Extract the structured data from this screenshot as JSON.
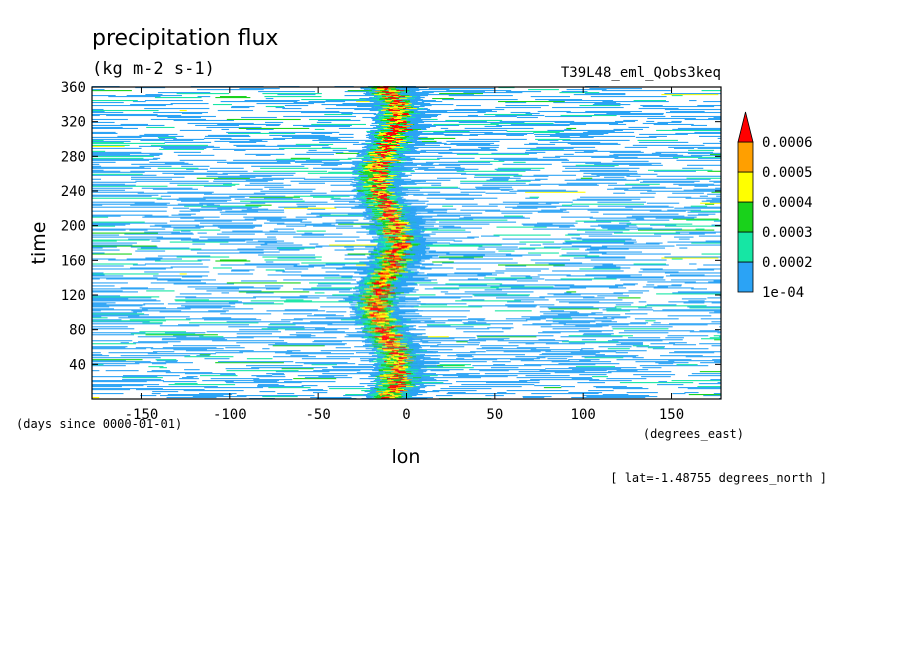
{
  "chart_data": {
    "type": "heatmap",
    "title": "precipitation flux",
    "units": "(kg m-2 s-1)",
    "experiment": "T39L48_eml_Qobs3keq",
    "xlabel": "lon",
    "ylabel": "time",
    "x_units": "(degrees_east)",
    "y_units": "(days since 0000-01-01)",
    "slice_note": "[ lat=-1.48755 degrees_north ]",
    "xlim": [
      -178,
      178
    ],
    "ylim": [
      0,
      360
    ],
    "xticks": [
      -150,
      -100,
      -50,
      0,
      50,
      100,
      150
    ],
    "xtick_labels": [
      "-150",
      "-100",
      "-50",
      "0",
      "50",
      "100",
      "150"
    ],
    "yticks": [
      40,
      80,
      120,
      160,
      200,
      240,
      280,
      320,
      360
    ],
    "ytick_labels": [
      "40",
      "80",
      "120",
      "160",
      "200",
      "240",
      "280",
      "320",
      "360"
    ],
    "colorbar": {
      "levels": [
        0.0001,
        0.0002,
        0.0003,
        0.0004,
        0.0005,
        0.0006
      ],
      "labels": [
        "1e-04",
        "0.0002",
        "0.0003",
        "0.0004",
        "0.0005",
        "0.0006"
      ],
      "colors": [
        "#2ba3f5",
        "#16e6a4",
        "#19d21b",
        "#ffff00",
        "#ff9f00",
        "#ff0000"
      ],
      "extend": "max"
    },
    "features": {
      "convective_band_lon": [
        -20,
        -5
      ],
      "description_of_field": "eastward-propagating streaks of precipitation with a persistent maximum near 10°W"
    }
  }
}
